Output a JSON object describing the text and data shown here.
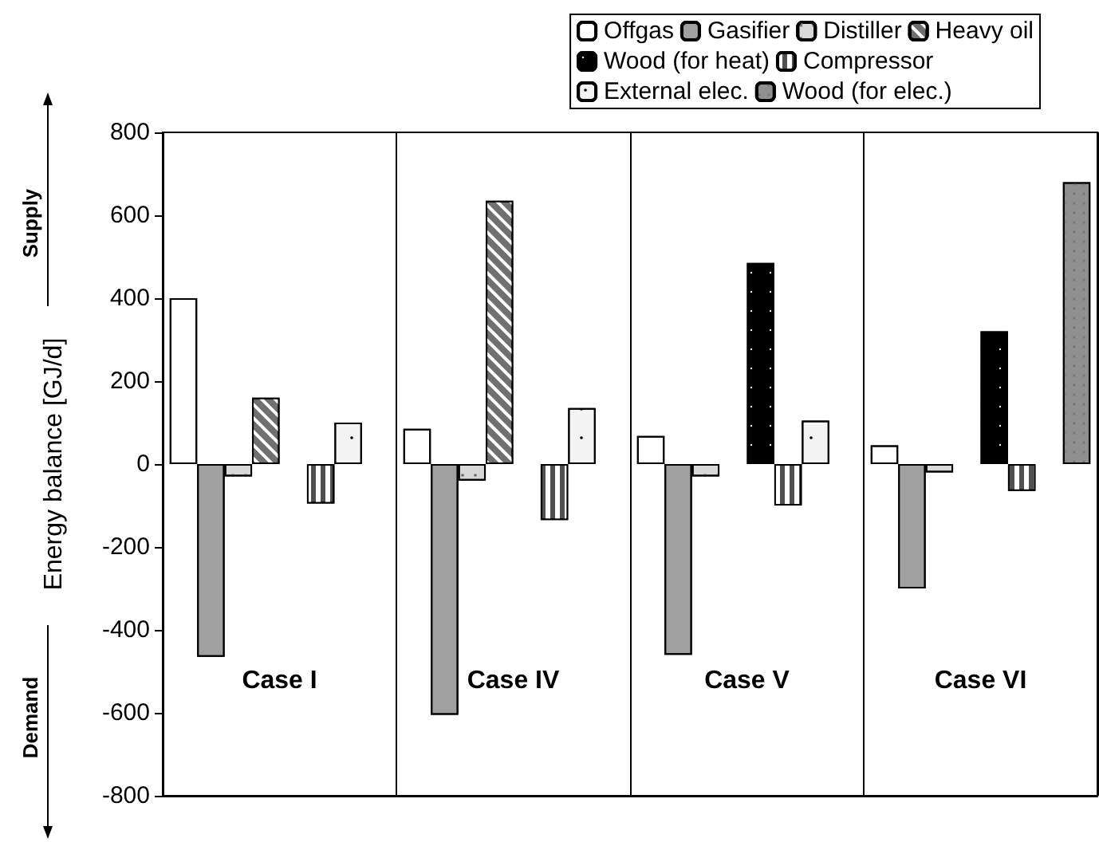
{
  "chart_data": {
    "type": "bar",
    "ylabel": "Energy balance [GJ/d]",
    "categories": [
      "Case I",
      "Case IV",
      "Case V",
      "Case VI"
    ],
    "series": [
      {
        "name": "Offgas",
        "color": "#ffffff",
        "values": [
          400,
          85,
          68,
          45
        ]
      },
      {
        "name": "Gasifier",
        "color": "#a0a0a0",
        "values": [
          -465,
          -605,
          -460,
          -300
        ]
      },
      {
        "name": "Distiller",
        "color": "#d8d8d8",
        "values": [
          -30,
          -40,
          -30,
          -20
        ]
      },
      {
        "name": "Heavy oil",
        "color": "#707070",
        "values": [
          160,
          635,
          null,
          null
        ]
      },
      {
        "name": "Wood (for heat)",
        "color": "#000000",
        "values": [
          null,
          null,
          485,
          320
        ]
      },
      {
        "name": "Compressor",
        "color": "#505050",
        "values": [
          -95,
          -135,
          -100,
          -65
        ]
      },
      {
        "name": "External elec.",
        "color": "#f4f4f4",
        "values": [
          100,
          135,
          105,
          null
        ]
      },
      {
        "name": "Wood (for elec.)",
        "color": "#909090",
        "values": [
          null,
          null,
          null,
          680
        ]
      }
    ],
    "ylim": [
      -800,
      800
    ],
    "yticks": [
      -800,
      -600,
      -400,
      -200,
      0,
      200,
      400,
      600,
      800
    ],
    "annotations": [
      "Supply",
      "Demand"
    ],
    "grid": "x",
    "legend": "top right"
  }
}
